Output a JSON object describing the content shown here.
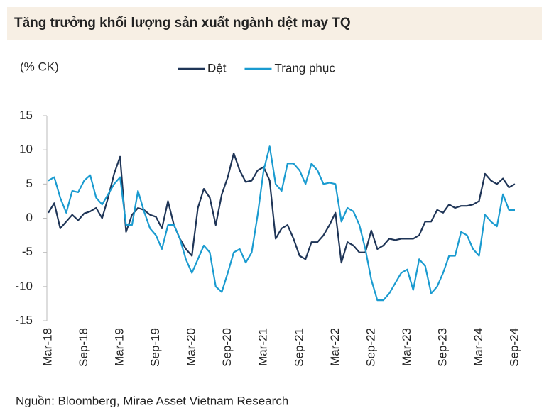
{
  "chart_data": {
    "type": "line",
    "title": "Tăng trưởng khối lượng sản xuất ngành dệt may TQ",
    "y_label": "(% CK)",
    "source": "Nguồn: Bloomberg, Mirae Asset Vietnam Research",
    "legend": "top",
    "categories": [
      "Mar-18",
      null,
      null,
      null,
      null,
      null,
      "Sep-18",
      null,
      null,
      null,
      null,
      null,
      "Mar-19",
      null,
      null,
      null,
      null,
      null,
      "Sep-19",
      null,
      null,
      null,
      null,
      null,
      "Mar-20",
      null,
      null,
      null,
      null,
      null,
      "Sep-20",
      null,
      null,
      null,
      null,
      null,
      "Mar-21",
      null,
      null,
      null,
      null,
      null,
      "Sep-21",
      null,
      null,
      null,
      null,
      null,
      "Mar-22",
      null,
      null,
      null,
      null,
      null,
      "Sep-22",
      null,
      null,
      null,
      null,
      null,
      "Mar-23",
      null,
      null,
      null,
      null,
      null,
      "Sep-23",
      null,
      null,
      null,
      null,
      null,
      "Mar-24",
      null,
      null,
      null,
      null,
      null,
      "Sep-24"
    ],
    "series": [
      {
        "name": "Dệt",
        "color": "#1f3557",
        "values": [
          0.8,
          2.2,
          -1.5,
          -0.5,
          0.5,
          -0.3,
          0.7,
          1.0,
          1.5,
          0.0,
          3.0,
          6.5,
          9.0,
          -2.0,
          0.5,
          1.5,
          1.2,
          0.5,
          0.2,
          -1.5,
          2.5,
          -1.0,
          -3.0,
          -4.5,
          -5.5,
          1.5,
          4.3,
          3.0,
          -1.0,
          3.5,
          6.0,
          9.5,
          7.0,
          5.3,
          5.5,
          7.0,
          7.5,
          5.5,
          -3.0,
          -1.5,
          -1.0,
          -3.0,
          -5.5,
          -6.0,
          -3.5,
          -3.5,
          -2.5,
          -1.0,
          0.8,
          -6.5,
          -3.5,
          -4.0,
          -5.0,
          -5.0,
          -1.8,
          -4.5,
          -4.0,
          -3.0,
          -3.2,
          -3.0,
          -3.0,
          -3.0,
          -2.5,
          -0.5,
          -0.5,
          1.2,
          0.8,
          2.0,
          1.5,
          1.8,
          1.8,
          2.0,
          2.5,
          6.5,
          5.5,
          5.0,
          5.8,
          4.5,
          5.0
        ]
      },
      {
        "name": "Trang phục",
        "color": "#1a9bd0",
        "values": [
          5.5,
          6.0,
          3.0,
          0.8,
          4.0,
          3.8,
          5.5,
          6.3,
          3.0,
          2.0,
          3.5,
          5.0,
          6.0,
          -1.0,
          -1.0,
          4.0,
          1.0,
          -1.5,
          -2.5,
          -4.5,
          -1.0,
          -1.0,
          -3.0,
          -6.0,
          -8.0,
          -6.0,
          -4.0,
          -5.0,
          -10.0,
          -10.8,
          -8.0,
          -5.0,
          -4.5,
          -6.5,
          -5.0,
          0.5,
          7.0,
          10.5,
          5.0,
          4.0,
          8.0,
          8.0,
          7.0,
          5.0,
          8.0,
          7.0,
          5.0,
          5.2,
          5.0,
          -0.5,
          1.5,
          1.0,
          -1.0,
          -4.5,
          -9.0,
          -12.0,
          -12.0,
          -11.0,
          -9.5,
          -8.0,
          -7.5,
          -10.5,
          -6.0,
          -7.0,
          -11.0,
          -10.0,
          -8.0,
          -5.5,
          -5.5,
          -2.0,
          -2.5,
          -4.5,
          -5.5,
          0.5,
          -0.5,
          -1.2,
          3.5,
          1.2,
          1.2
        ]
      }
    ],
    "ylim": [
      -15,
      15
    ],
    "yticks": [
      -15,
      -10,
      -5,
      0,
      5,
      10,
      15
    ],
    "grid": false
  }
}
